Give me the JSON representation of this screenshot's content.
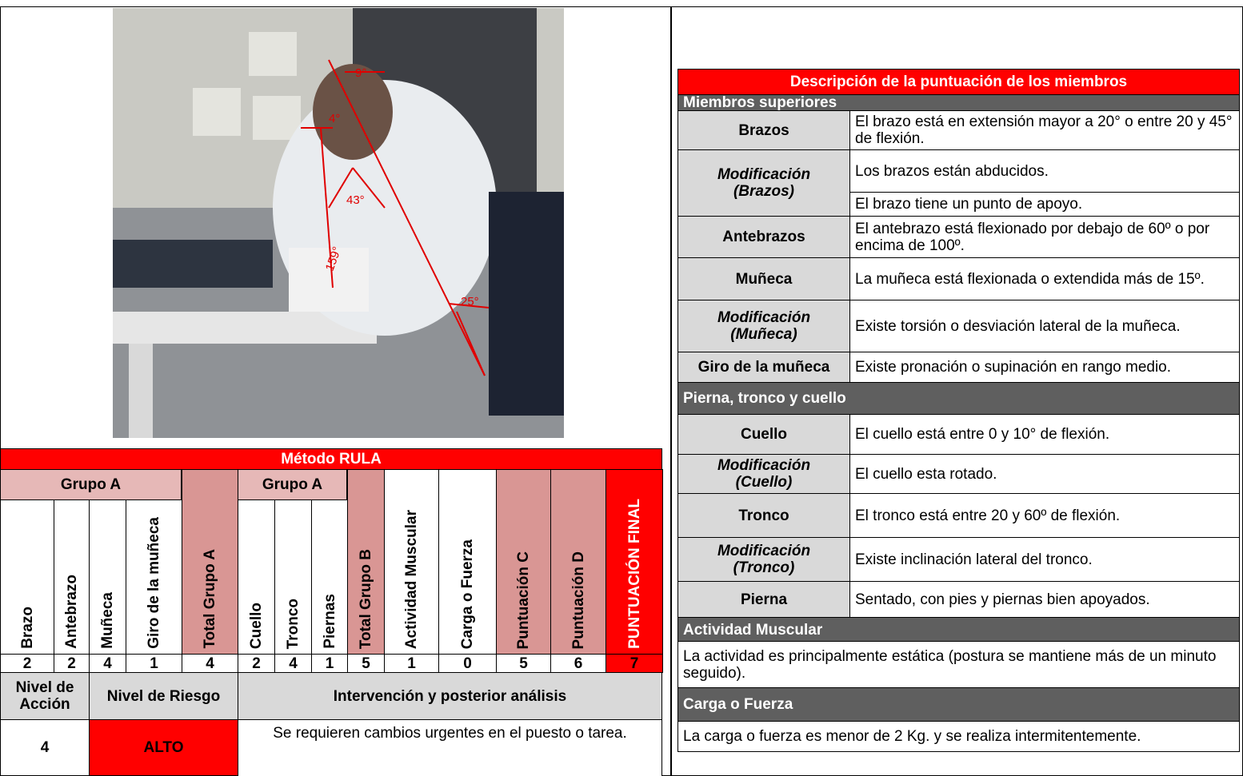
{
  "photo": {
    "angles": [
      "9°",
      "4°",
      "43°",
      "159°",
      "25°"
    ]
  },
  "rula": {
    "title": "Método RULA",
    "groups": [
      "Grupo A",
      "Grupo A"
    ],
    "headers": [
      "Brazo",
      "Antebrazo",
      "Muñeca",
      "Giro de la muñeca",
      "Total Grupo A",
      "Cuello",
      "Tronco",
      "Piernas",
      "Total Grupo B",
      "Actividad Muscular",
      "Carga o Fuerza",
      "Puntuación C",
      "Puntuación D",
      "PUNTUACIÓN FINAL"
    ],
    "values": [
      2,
      2,
      4,
      1,
      4,
      2,
      4,
      1,
      5,
      1,
      0,
      5,
      6,
      7
    ],
    "action_header": "Nivel de Acción",
    "risk_header": "Nivel de Riesgo",
    "intervention_header": "Intervención y posterior análisis",
    "action_level": 4,
    "risk_level": "ALTO",
    "intervention": "Se requieren cambios urgentes en el puesto o tarea."
  },
  "description": {
    "title": "Descripción de la puntuación de los miembros",
    "sections": [
      {
        "title": "Miembros superiores",
        "rows": [
          {
            "label": "Brazos",
            "text": [
              "El brazo está en extensión mayor a 20° o entre 20 y 45° de flexión."
            ]
          },
          {
            "label": "Modificación (Brazos)",
            "text": [
              "Los brazos están abducidos.",
              "El brazo tiene un punto de apoyo."
            ]
          },
          {
            "label": "Antebrazos",
            "text": [
              "El antebrazo está flexionado por debajo de 60º o por encima de 100º."
            ]
          },
          {
            "label": "Muñeca",
            "text": [
              "La muñeca está flexionada o extendida más de 15º."
            ]
          },
          {
            "label": "Modificación (Muñeca)",
            "text": [
              "Existe torsión o desviación lateral de la muñeca."
            ]
          },
          {
            "label": "Giro de la muñeca",
            "text": [
              "Existe pronación o supinación en rango medio."
            ]
          }
        ]
      },
      {
        "title": "Pierna, tronco y cuello",
        "rows": [
          {
            "label": "Cuello",
            "text": [
              "El cuello está entre 0 y 10° de flexión."
            ]
          },
          {
            "label": "Modificación (Cuello)",
            "text": [
              "El cuello esta rotado."
            ]
          },
          {
            "label": "Tronco",
            "text": [
              "El tronco está entre 20 y 60º de flexión."
            ]
          },
          {
            "label": "Modificación (Tronco)",
            "text": [
              "Existe inclinación lateral del tronco."
            ]
          },
          {
            "label": "Pierna",
            "text": [
              "Sentado, con pies y piernas bien apoyados."
            ]
          }
        ]
      },
      {
        "title": "Actividad Muscular",
        "text": "La actividad es principalmente estática (postura se mantiene más de un minuto seguido)."
      },
      {
        "title": "Carga o Fuerza",
        "text": "La carga o fuerza es menor de 2 Kg. y se realiza intermitentemente."
      }
    ]
  }
}
